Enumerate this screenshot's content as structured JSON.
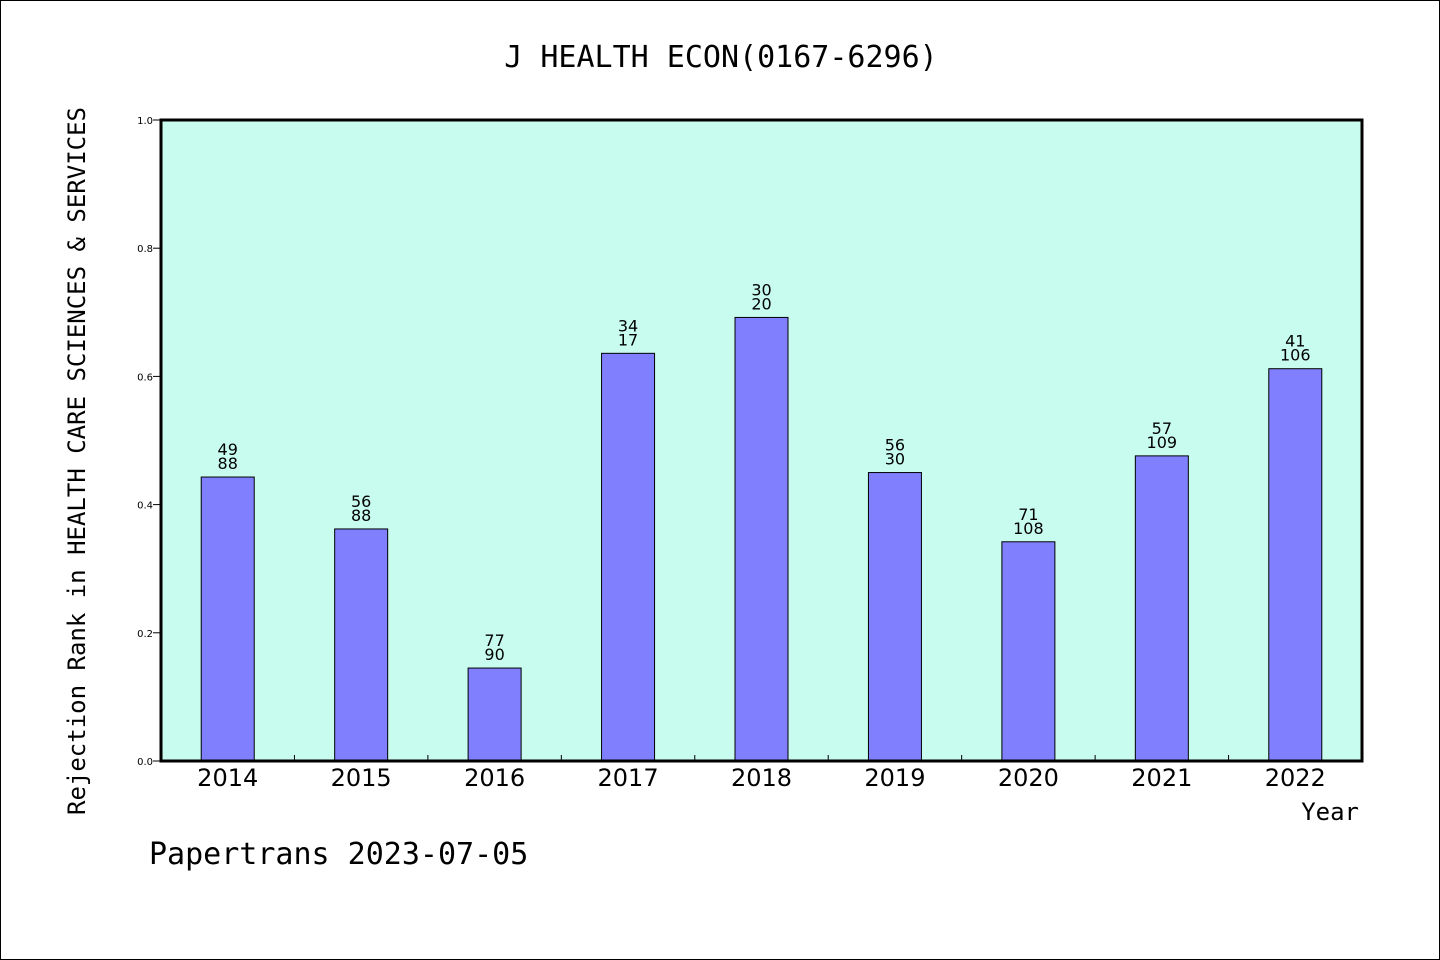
{
  "colors": {
    "plot_background": "#c8fcee",
    "bar_fill": "#8080ff",
    "bar_stroke": "#000000",
    "frame": "#000000"
  },
  "footer": "Papertrans 2023-07-05",
  "chart_data": {
    "type": "bar",
    "title": "J HEALTH ECON(0167-6296)",
    "xlabel": "Year",
    "ylabel": "Rejection Rank in HEALTH CARE SCIENCES & SERVICES",
    "ylim": [
      0,
      1.0
    ],
    "yticks": [
      "0.0",
      "0.2",
      "0.4",
      "0.6",
      "0.8",
      "1.0"
    ],
    "grid": false,
    "categories": [
      "2014",
      "2015",
      "2016",
      "2017",
      "2018",
      "2019",
      "2020",
      "2021",
      "2022"
    ],
    "values": [
      0.443,
      0.362,
      0.145,
      0.636,
      0.692,
      0.45,
      0.342,
      0.476,
      0.612
    ],
    "labels_top": [
      "49",
      "56",
      "77",
      "34",
      "30",
      "56",
      "71",
      "57",
      "41"
    ],
    "labels_bottom": [
      "88",
      "88",
      "90",
      "17",
      "20",
      "30",
      "108",
      "109",
      "106"
    ]
  }
}
